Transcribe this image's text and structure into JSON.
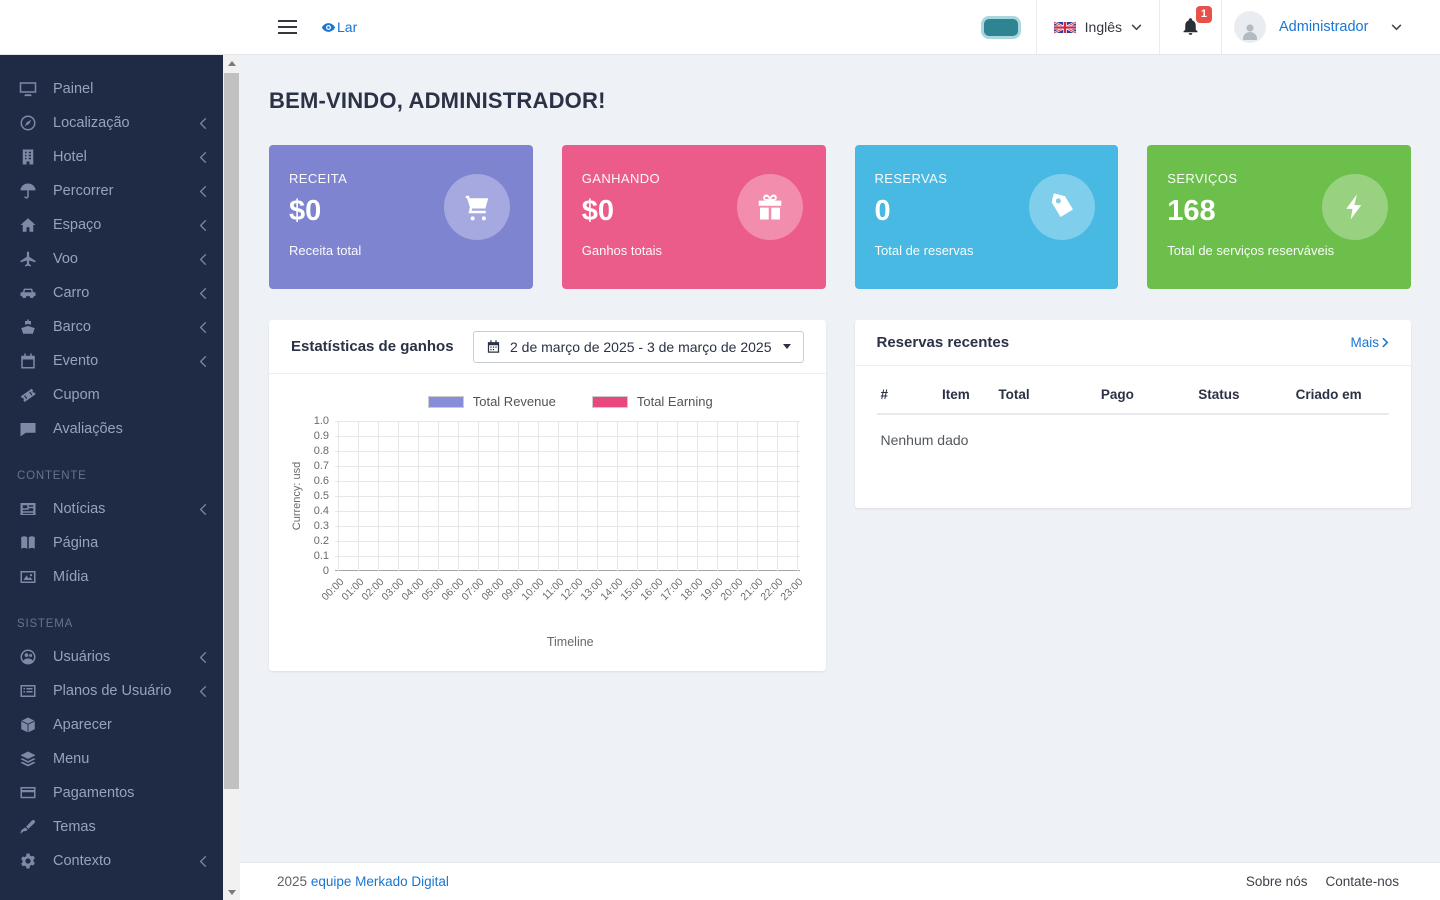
{
  "navbar": {
    "home_label": "Lar",
    "language": {
      "label": "Inglês"
    },
    "notifications": {
      "count": "1"
    },
    "user": {
      "name": "Administrador"
    }
  },
  "colors": {
    "accent_link": "#1976d2",
    "sidebar_bg": "#1f2a45",
    "toggle_on": "#2e8492",
    "badge_red": "#e8504a"
  },
  "sidebar": {
    "sections": [
      {
        "header": "",
        "items": [
          {
            "label": "Painel",
            "icon": "desktop-icon",
            "chevron": false
          },
          {
            "label": "Localização",
            "icon": "compass-icon",
            "chevron": true
          },
          {
            "label": "Hotel",
            "icon": "building-icon",
            "chevron": true
          },
          {
            "label": "Percorrer",
            "icon": "umbrella-icon",
            "chevron": true
          },
          {
            "label": "Espaço",
            "icon": "home-icon",
            "chevron": true
          },
          {
            "label": "Voo",
            "icon": "plane-icon",
            "chevron": true
          },
          {
            "label": "Carro",
            "icon": "car-icon",
            "chevron": true
          },
          {
            "label": "Barco",
            "icon": "ship-icon",
            "chevron": true
          },
          {
            "label": "Evento",
            "icon": "calendar-icon",
            "chevron": true
          },
          {
            "label": "Cupom",
            "icon": "ticket-icon",
            "chevron": false
          },
          {
            "label": "Avaliações",
            "icon": "comment-icon",
            "chevron": false
          }
        ]
      },
      {
        "header": "CONTENTE",
        "items": [
          {
            "label": "Notícias",
            "icon": "newspaper-icon",
            "chevron": true
          },
          {
            "label": "Página",
            "icon": "book-icon",
            "chevron": false
          },
          {
            "label": "Mídia",
            "icon": "image-icon",
            "chevron": false
          }
        ]
      },
      {
        "header": "SISTEMA",
        "items": [
          {
            "label": "Usuários",
            "icon": "users-icon",
            "chevron": true
          },
          {
            "label": "Planos de Usuário",
            "icon": "list-icon",
            "chevron": true
          },
          {
            "label": "Aparecer",
            "icon": "cube-icon",
            "chevron": false
          },
          {
            "label": "Menu",
            "icon": "layers-icon",
            "chevron": false
          },
          {
            "label": "Pagamentos",
            "icon": "credit-card-icon",
            "chevron": false
          },
          {
            "label": "Temas",
            "icon": "brush-icon",
            "chevron": false
          },
          {
            "label": "Contexto",
            "icon": "gear-icon",
            "chevron": true
          }
        ]
      }
    ]
  },
  "main": {
    "heading": "BEM-VINDO, ADMINISTRADOR!",
    "stats": [
      {
        "label": "RECEITA",
        "value": "$0",
        "caption": "Receita total",
        "icon": "cart-icon",
        "color": "#7f84d1"
      },
      {
        "label": "GANHANDO",
        "value": "$0",
        "caption": "Ganhos totais",
        "icon": "gift-icon",
        "color": "#ec5c8b"
      },
      {
        "label": "RESERVAS",
        "value": "0",
        "caption": "Total de reservas",
        "icon": "tag-icon",
        "color": "#48b9e2"
      },
      {
        "label": "SERVIÇOS",
        "value": "168",
        "caption": "Total de serviços reserváveis",
        "icon": "bolt-icon",
        "color": "#6cbf4b"
      }
    ],
    "earnings": {
      "title": "Estatísticas de ganhos",
      "date_range": "2 de março de 2025 - 3 de março de 2025"
    },
    "chart_data": {
      "type": "line",
      "title": "Estatísticas de ganhos",
      "xlabel": "Timeline",
      "ylabel": "Currency: usd",
      "x": [
        "00:00",
        "01:00",
        "02:00",
        "03:00",
        "04:00",
        "05:00",
        "06:00",
        "07:00",
        "08:00",
        "09:00",
        "10:00",
        "11:00",
        "12:00",
        "13:00",
        "14:00",
        "15:00",
        "16:00",
        "17:00",
        "18:00",
        "19:00",
        "20:00",
        "21:00",
        "22:00",
        "23:00"
      ],
      "ylim": [
        0,
        1.0
      ],
      "yticks": [
        "0",
        "0.1",
        "0.2",
        "0.3",
        "0.4",
        "0.5",
        "0.6",
        "0.7",
        "0.8",
        "0.9",
        "1.0"
      ],
      "grid": true,
      "legend_position": "top-center",
      "series": [
        {
          "name": "Total Revenue",
          "color": "#878dd9",
          "values": []
        },
        {
          "name": "Total Earning",
          "color": "#e8487f",
          "values": []
        }
      ]
    },
    "recent": {
      "title": "Reservas recentes",
      "more_label": "Mais",
      "columns": [
        "#",
        "Item",
        "Total",
        "Pago",
        "Status",
        "Criado em"
      ],
      "empty_text": "Nenhum dado"
    }
  },
  "footer": {
    "year": "2025",
    "credit_link": "equipe Merkado Digital",
    "links": [
      "Sobre nós",
      "Contate-nos"
    ]
  }
}
